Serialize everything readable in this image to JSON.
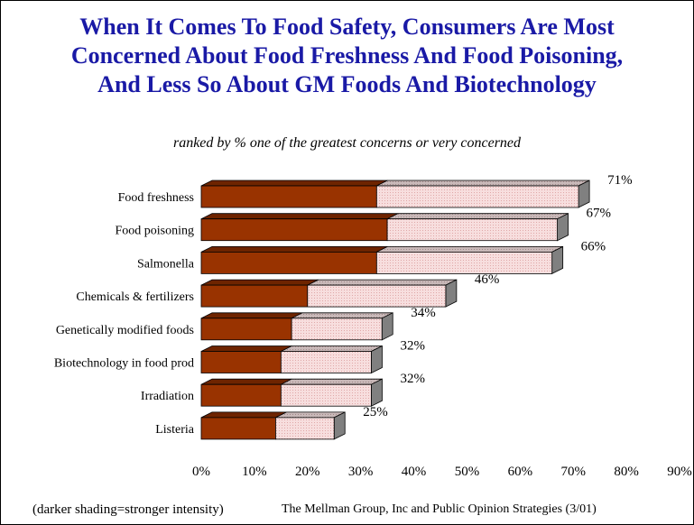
{
  "title_lines": [
    "When It Comes To Food Safety, Consumers Are Most",
    "Concerned About Food Freshness And Food Poisoning,",
    "And Less So About GM Foods And Biotechnology"
  ],
  "subtitle": "ranked by % one of the greatest concerns or very concerned",
  "footer": {
    "note": "(darker shading=stronger intensity)",
    "source": "The Mellman Group, Inc and Public Opinion Strategies (3/01)"
  },
  "colors": {
    "title": "#1a1aa6",
    "dark_series": "#993300",
    "light_series": "#f7dede"
  },
  "chart_data": {
    "type": "bar",
    "orientation": "horizontal",
    "stacked": true,
    "categories": [
      "Food freshness",
      "Food poisoning",
      "Salmonella",
      "Chemicals & fertilizers",
      "Genetically modified foods",
      "Biotechnology in food prod",
      "Irradiation",
      "Listeria"
    ],
    "series": [
      {
        "values": [
          33,
          35,
          33,
          20,
          17,
          15,
          15,
          14
        ]
      },
      {
        "values": [
          38,
          32,
          33,
          26,
          17,
          17,
          17,
          11
        ]
      }
    ],
    "totals": [
      71,
      67,
      66,
      46,
      34,
      32,
      32,
      25
    ],
    "total_labels": [
      "71%",
      "67%",
      "66%",
      "46%",
      "34%",
      "32%",
      "32%",
      "25%"
    ],
    "xlim": [
      0,
      90
    ],
    "xticks": [
      0,
      10,
      20,
      30,
      40,
      50,
      60,
      70,
      80,
      90
    ],
    "xtick_labels": [
      "0%",
      "10%",
      "20%",
      "30%",
      "40%",
      "50%",
      "60%",
      "70%",
      "80%",
      "90%"
    ],
    "grid": false,
    "legend": "none"
  }
}
